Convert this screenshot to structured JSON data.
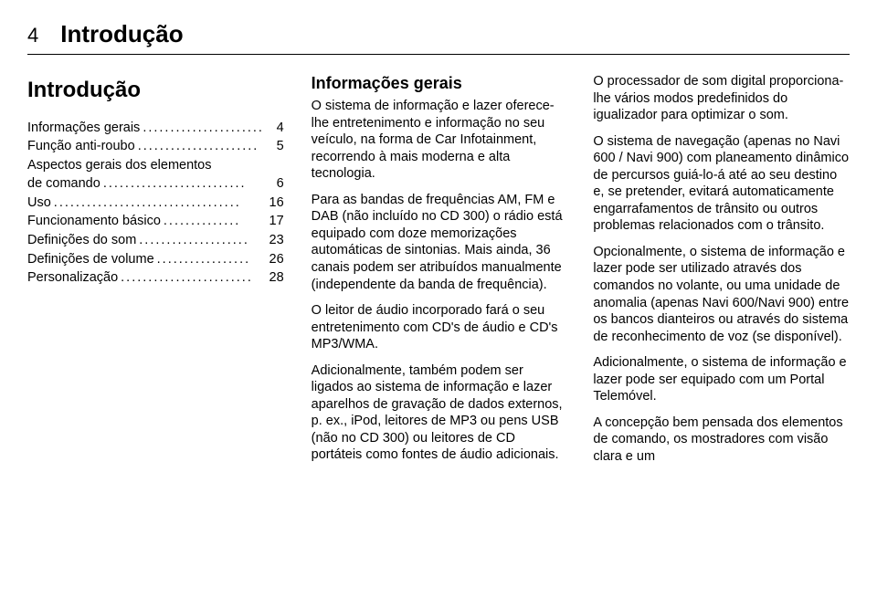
{
  "page_number": "4",
  "chapter": "Introdução",
  "col1": {
    "title": "Introdução",
    "toc": [
      {
        "label": "Informações gerais",
        "page": "4"
      },
      {
        "label": "Função anti-roubo",
        "page": "5"
      },
      {
        "label_line1": "Aspectos gerais dos elementos",
        "label_line2": "de comando",
        "page": "6"
      },
      {
        "label": "Uso",
        "page": "16"
      },
      {
        "label": "Funcionamento básico",
        "page": "17"
      },
      {
        "label": "Definições do som",
        "page": "23"
      },
      {
        "label": "Definições de volume",
        "page": "26"
      },
      {
        "label": "Personalização",
        "page": "28"
      }
    ]
  },
  "col2": {
    "heading": "Informações gerais",
    "p1": "O sistema de informação e lazer oferece-lhe entretenimento e informação no seu veículo, na forma de Car Infotainment, recorrendo à mais moderna e alta tecnologia.",
    "p2": "Para as bandas de frequências AM, FM e DAB (não incluído no CD 300) o rádio está equipado com doze memorizações automáticas de sintonias. Mais ainda, 36 canais podem ser atribuídos manualmente (independente da banda de frequência).",
    "p3": "O leitor de áudio incorporado fará o seu entretenimento com CD's de áudio e CD's MP3/WMA.",
    "p4": "Adicionalmente, também podem ser ligados ao sistema de informação e lazer aparelhos de gravação de dados externos, p. ex., iPod, leitores de MP3 ou pens USB (não no CD 300) ou leitores de CD portáteis como fontes de áudio adicionais."
  },
  "col3": {
    "p1": "O processador de som digital proporciona-lhe vários modos predefinidos do igualizador para optimizar o som.",
    "p2": "O sistema de navegação (apenas no Navi 600 / Navi 900) com planeamento dinâmico de percursos guiá-lo-á até ao seu destino e, se pretender, evitará automaticamente engarrafamentos de trânsito ou outros problemas relacionados com o trânsito.",
    "p3": "Opcionalmente, o sistema de informação e lazer pode ser utilizado através dos comandos no volante, ou uma unidade de anomalia (apenas Navi 600/Navi 900) entre os bancos dianteiros ou através do sistema de reconhecimento de voz (se disponível).",
    "p4": "Adicionalmente, o sistema de informação e lazer pode ser equipado com um Portal Telemóvel.",
    "p5": "A concepção bem pensada dos elementos de comando, os mostradores com visão clara e um"
  }
}
